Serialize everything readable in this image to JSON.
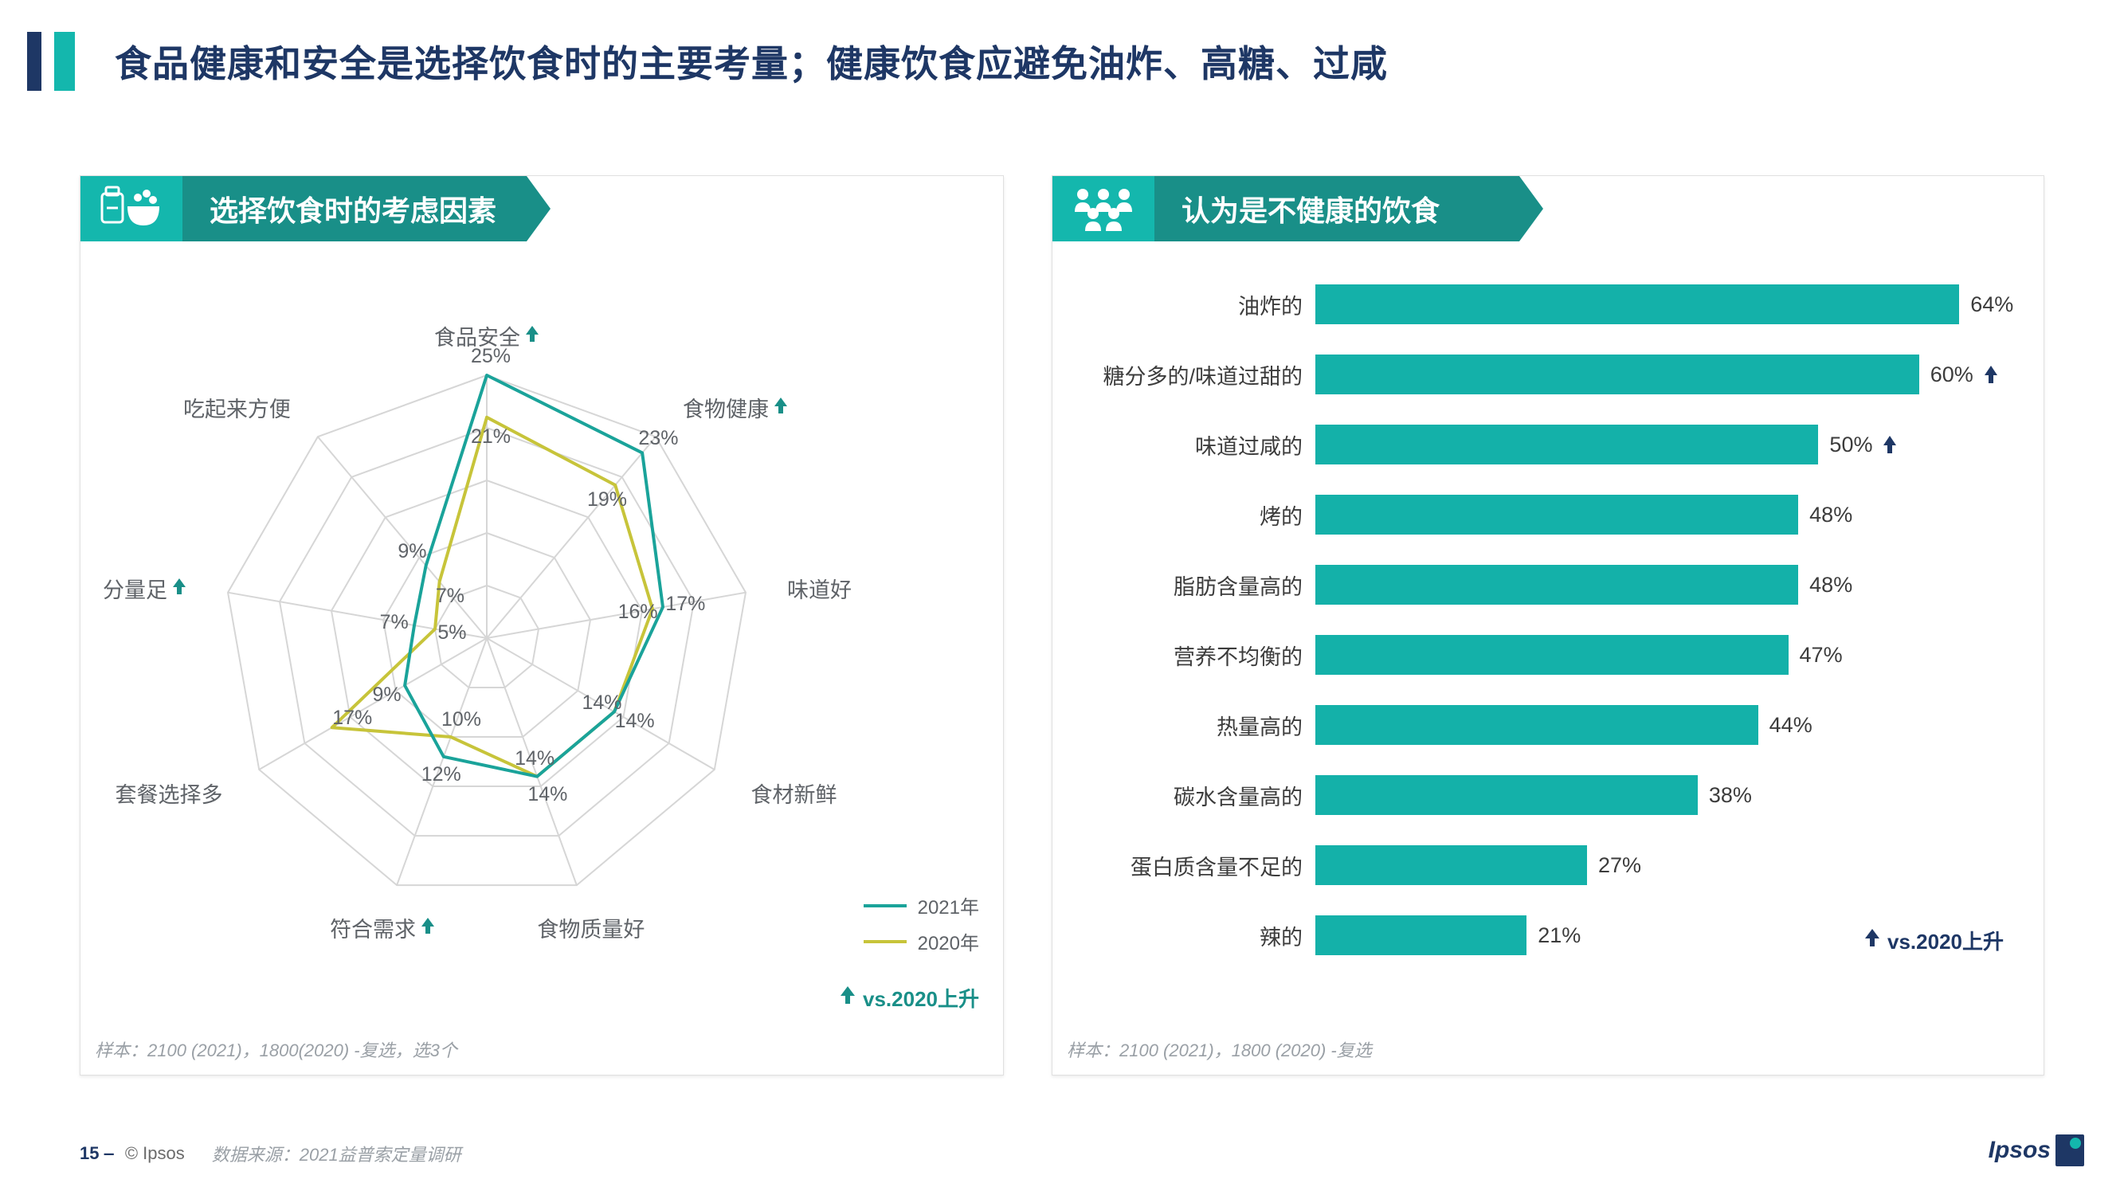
{
  "colors": {
    "title": "#1e3765",
    "teal": "#14b7ad",
    "teal_dark": "#198f88",
    "bar": "#14b1a9",
    "grid": "#d6d6d6",
    "grey_text": "#5f6368",
    "line_2021": "#1aa39a",
    "line_2020": "#c7c43a",
    "arrow_dark": "#1e3765"
  },
  "title": "食品健康和安全是选择饮食时的主要考量；健康饮食应避免油炸、高糖、过咸",
  "left_panel": {
    "header": "选择饮食时的考虑因素",
    "note": "样本：2100 (2021)，1800(2020) -复选，选3个",
    "legend": {
      "series1": "2021年",
      "series2": "2020年"
    },
    "rise_label": "vs.2020上升"
  },
  "right_panel": {
    "header": "认为是不健康的饮食",
    "note": "样本：2100 (2021)，1800 (2020)  -复选",
    "rise_label": "vs.2020上升"
  },
  "radar": {
    "type": "radar",
    "rings": [
      5,
      10,
      15,
      20,
      25
    ],
    "max": 25,
    "axes": [
      {
        "label": "食品安全",
        "rise": true
      },
      {
        "label": "食物健康",
        "rise": true
      },
      {
        "label": "味道好"
      },
      {
        "label": "食材新鲜"
      },
      {
        "label": "食物质量好"
      },
      {
        "label": "符合需求",
        "rise": true
      },
      {
        "label": "套餐选择多"
      },
      {
        "label": "分量足",
        "rise": true
      },
      {
        "label": "吃起来方便"
      }
    ],
    "series_2021": [
      25,
      23,
      17,
      14,
      14,
      12,
      9,
      7,
      9
    ],
    "series_2020": [
      21,
      19,
      16,
      14,
      14,
      10,
      17,
      5,
      7
    ],
    "colors": {
      "2021": "#1aa39a",
      "2020": "#c7c43a",
      "grid": "#d6d6d6"
    },
    "line_width": 4
  },
  "bars": {
    "type": "bar-horizontal",
    "max": 70,
    "bar_color": "#14b1a9",
    "items": [
      {
        "label": "油炸的",
        "value": 64
      },
      {
        "label": "糖分多的/味道过甜的",
        "value": 60,
        "rise": true
      },
      {
        "label": "味道过咸的",
        "value": 50,
        "rise": true
      },
      {
        "label": "烤的",
        "value": 48
      },
      {
        "label": "脂肪含量高的",
        "value": 48
      },
      {
        "label": "营养不均衡的",
        "value": 47
      },
      {
        "label": "热量高的",
        "value": 44
      },
      {
        "label": "碳水含量高的",
        "value": 38
      },
      {
        "label": "蛋白质含量不足的",
        "value": 27
      },
      {
        "label": "辣的",
        "value": 21
      }
    ]
  },
  "footer": {
    "page": "15 ‒",
    "copyright": "© Ipsos",
    "source": "数据来源：2021益普索定量调研",
    "logo": "Ipsos"
  }
}
